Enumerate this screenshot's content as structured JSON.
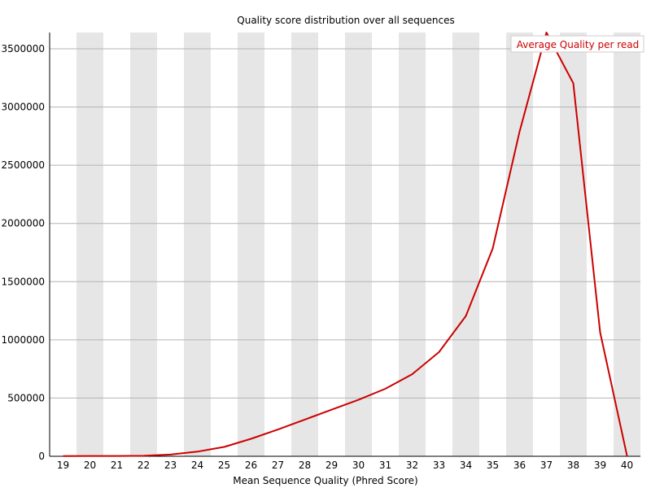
{
  "chart_data": {
    "type": "line",
    "title": "Quality score distribution over all sequences",
    "xlabel": "Mean Sequence Quality (Phred Score)",
    "ylabel": "",
    "x": [
      19,
      20,
      21,
      22,
      23,
      24,
      25,
      26,
      27,
      28,
      29,
      30,
      31,
      32,
      33,
      34,
      35,
      36,
      37,
      38,
      39,
      40
    ],
    "series": [
      {
        "name": "Average Quality per read",
        "color": "#cc0000",
        "values": [
          2000,
          2500,
          3000,
          4000,
          15000,
          40000,
          80000,
          150000,
          230000,
          315000,
          400000,
          485000,
          580000,
          705000,
          895000,
          1205000,
          1785000,
          2790000,
          3640000,
          3205000,
          1065000,
          5000
        ]
      }
    ],
    "yticks": [
      0,
      500000,
      1000000,
      1500000,
      2000000,
      2500000,
      3000000,
      3500000
    ],
    "ytick_labels": [
      "0",
      "500000",
      "1000000",
      "1500000",
      "2000000",
      "2500000",
      "3000000",
      "3500000"
    ],
    "ylim": [
      0,
      3640000
    ],
    "xlim": [
      18.5,
      40.5
    ],
    "grid": "horizontal",
    "band_color": "#e6e6e6",
    "legend_position": "top-right"
  }
}
